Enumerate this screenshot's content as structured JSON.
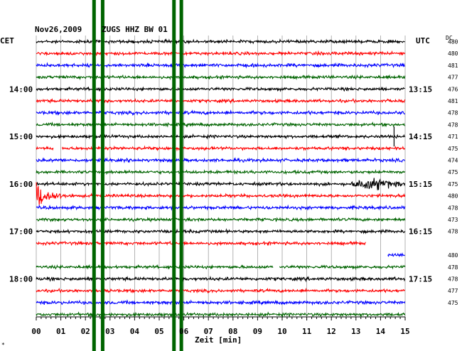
{
  "header": {
    "date": "Nov26,2009",
    "station": "ZUGS HHZ BW 01"
  },
  "left_axis_label": "CET",
  "right_axis_label": "UTC",
  "dc_label": "DC",
  "x_axis_label": "Zeit [min]",
  "corner_mark": "*",
  "chart_data": {
    "type": "line",
    "title": "Nov26,2009  ZUGS HHZ BW 01",
    "xlabel": "Zeit [min]",
    "xlim": [
      0,
      15
    ],
    "x_ticks": [
      "00",
      "01",
      "02",
      "03",
      "04",
      "05",
      "06",
      "07",
      "08",
      "09",
      "10",
      "11",
      "12",
      "13",
      "14",
      "15"
    ],
    "trace_colors": [
      "#000000",
      "#ff0000",
      "#0000ff",
      "#006400"
    ],
    "left_time_labels": [
      {
        "trace": 4,
        "label": "14:00"
      },
      {
        "trace": 8,
        "label": "15:00"
      },
      {
        "trace": 12,
        "label": "16:00"
      },
      {
        "trace": 16,
        "label": "17:00"
      },
      {
        "trace": 20,
        "label": "18:00"
      }
    ],
    "right_time_labels": [
      {
        "trace": 0,
        "label": "UTC"
      },
      {
        "trace": 4,
        "label": "13:15"
      },
      {
        "trace": 8,
        "label": "14:15"
      },
      {
        "trace": 12,
        "label": "15:15"
      },
      {
        "trace": 16,
        "label": "16:15"
      },
      {
        "trace": 20,
        "label": "17:15"
      }
    ],
    "dc_values": [
      "480",
      "480",
      "481",
      "477",
      "476",
      "481",
      "478",
      "478",
      "471",
      "475",
      "474",
      "475",
      "475",
      "480",
      "478",
      "473",
      "478",
      "",
      "480",
      "478",
      "478",
      "477",
      "475"
    ],
    "event_bands_min": [
      2.35,
      2.7,
      5.6,
      5.9
    ],
    "traces": [
      {
        "color": "#000000",
        "amplitude": 1.2
      },
      {
        "color": "#ff0000",
        "amplitude": 1.2
      },
      {
        "color": "#0000ff",
        "amplitude": 1.3
      },
      {
        "color": "#006400",
        "amplitude": 1.2
      },
      {
        "color": "#000000",
        "amplitude": 1.2
      },
      {
        "color": "#ff0000",
        "amplitude": 1.2
      },
      {
        "color": "#0000ff",
        "amplitude": 1.3
      },
      {
        "color": "#006400",
        "amplitude": 1.2
      },
      {
        "color": "#000000",
        "amplitude": 1.2,
        "events": [
          {
            "type": "spike",
            "at": 14.55,
            "height": 14
          }
        ]
      },
      {
        "color": "#ff0000",
        "amplitude": 1.2,
        "segments": [
          [
            0,
            0.7
          ],
          [
            1.05,
            15
          ]
        ]
      },
      {
        "color": "#0000ff",
        "amplitude": 1.3
      },
      {
        "color": "#006400",
        "amplitude": 1.2
      },
      {
        "color": "#000000",
        "amplitude": 1.2,
        "events": [
          {
            "type": "burst",
            "start": 12.8,
            "end": 15,
            "amp": 5
          }
        ]
      },
      {
        "color": "#ff0000",
        "amplitude": 1.2,
        "events": [
          {
            "type": "quake",
            "start": 0.0,
            "end": 1.8,
            "amp": 13
          }
        ]
      },
      {
        "color": "#0000ff",
        "amplitude": 1.3
      },
      {
        "color": "#006400",
        "amplitude": 1.2
      },
      {
        "color": "#000000",
        "amplitude": 1.2
      },
      {
        "color": "#ff0000",
        "amplitude": 1.2,
        "segments": [
          [
            0,
            13.4
          ]
        ]
      },
      {
        "color": "#0000ff",
        "amplitude": 1.2,
        "segments": [
          [
            14.3,
            15.1
          ]
        ]
      },
      {
        "color": "#006400",
        "amplitude": 1.2,
        "segments": [
          [
            0,
            9.65
          ],
          [
            9.9,
            15
          ]
        ]
      },
      {
        "color": "#000000",
        "amplitude": 1.3
      },
      {
        "color": "#ff0000",
        "amplitude": 1.2
      },
      {
        "color": "#0000ff",
        "amplitude": 1.3
      },
      {
        "color": "#006400",
        "amplitude": 1.2
      }
    ]
  }
}
